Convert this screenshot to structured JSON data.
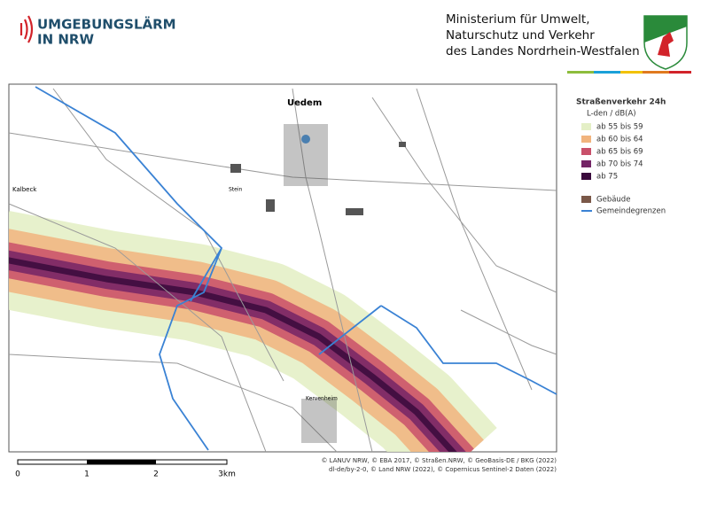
{
  "header": {
    "brand": [
      "UMGEBUNGSLÄRM",
      "IN NRW"
    ],
    "ministry": [
      "Ministerium für Umwelt,",
      "Naturschutz und Verkehr",
      "des Landes Nordrhein-Westfalen"
    ]
  },
  "legend": {
    "title": "Straßenverkehr 24h",
    "subtitle": "L-den / dB(A)",
    "classes": [
      {
        "label": "ab 55 bis 59",
        "color": "#e4efc6"
      },
      {
        "label": "ab 60 bis 64",
        "color": "#f1b47e"
      },
      {
        "label": "ab 65 bis 69",
        "color": "#c9506a"
      },
      {
        "label": "ab 70 bis 74",
        "color": "#742566"
      },
      {
        "label": "ab 75",
        "color": "#3a0a3c"
      }
    ],
    "other": [
      {
        "label": "Gebäude",
        "color": "#7a5848",
        "kind": "area"
      },
      {
        "label": "Gemeindegrenzen",
        "color": "#3a82d4",
        "kind": "line"
      }
    ]
  },
  "map": {
    "places": [
      "Uedem",
      "Stein",
      "Kervenheim",
      "Kalbeck"
    ]
  },
  "scale": [
    "0",
    "1",
    "2",
    "3km"
  ],
  "credits": [
    "© LANUV NRW, © EBA 2017, © Straßen.NRW, © GeoBasis-DE / BKG (2022)",
    "dl-de/by-2-0, © Land NRW (2022), © Copernicus Sentinel-2 Daten (2022)"
  ]
}
